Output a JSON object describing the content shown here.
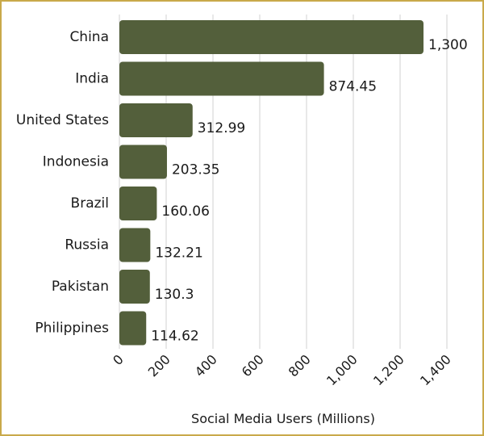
{
  "chart_data": {
    "type": "bar",
    "orientation": "horizontal",
    "categories": [
      "China",
      "India",
      "United States",
      "Indonesia",
      "Brazil",
      "Russia",
      "Pakistan",
      "Philippines"
    ],
    "values": [
      1300,
      874.45,
      312.99,
      203.35,
      160.06,
      132.21,
      130.3,
      114.62
    ],
    "value_labels": [
      "1,300",
      "874.45",
      "312.99",
      "203.35",
      "160.06",
      "132.21",
      "130.3",
      "114.62"
    ],
    "xlabel": "Social Media Users (Millions)",
    "ylabel": "",
    "xlim": [
      0,
      1400
    ],
    "xticks": [
      0,
      200,
      400,
      600,
      800,
      1000,
      1200,
      1400
    ],
    "xtick_labels": [
      "0",
      "200",
      "400",
      "600",
      "800",
      "1,000",
      "1,200",
      "1,400"
    ],
    "grid": "vertical",
    "bar_color": "#535f3b",
    "grid_color": "#d0d0d0",
    "frame_color": "#c9a94a"
  }
}
